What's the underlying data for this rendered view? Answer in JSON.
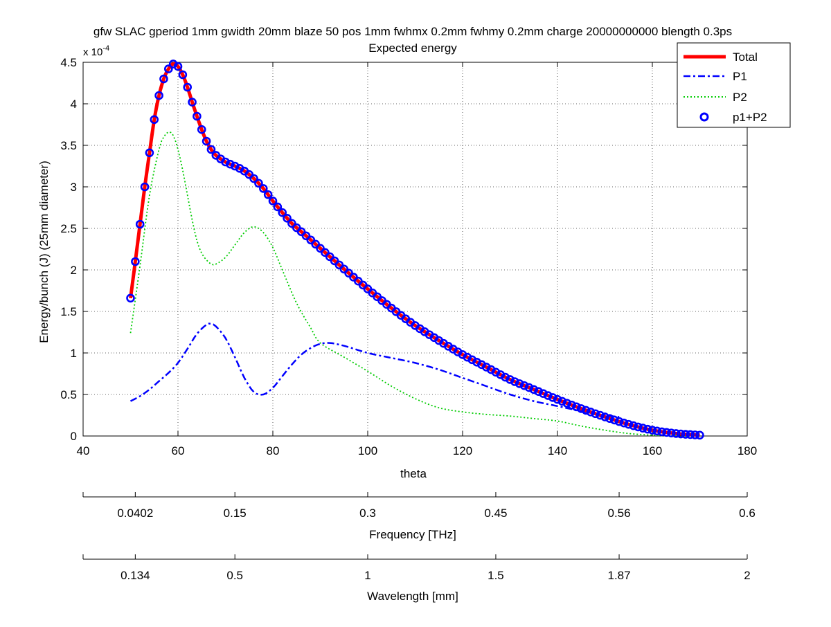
{
  "chart_data": {
    "type": "line",
    "title": "gfw SLAC gperiod 1mm gwidth 20mm blaze 50 pos 1mm fwhmx 0.2mm fwhmy 0.2mm charge 20000000000 blength 0.3ps",
    "subtitle": "Expected energy",
    "xlabel": "theta",
    "ylabel": "Energy/bunch (J)  (25mm diameter)",
    "y_multiplier": "x 10",
    "y_multiplier_exp": "-4",
    "xlim": [
      40,
      180
    ],
    "ylim": [
      0,
      4.5
    ],
    "x_ticks": [
      40,
      60,
      80,
      100,
      120,
      140,
      160,
      180
    ],
    "y_ticks": [
      0,
      0.5,
      1,
      1.5,
      2,
      2.5,
      3,
      3.5,
      4,
      4.5
    ],
    "grid": true,
    "legend_position": "top-right",
    "series": [
      {
        "name": "Total",
        "style": "solid",
        "color": "#ff0000",
        "x": [
          50,
          51,
          52,
          53,
          54,
          55,
          56,
          57,
          58,
          59,
          60,
          61,
          62,
          63,
          64,
          65,
          66,
          67,
          68,
          70,
          72,
          74,
          76,
          78,
          80,
          82,
          84,
          86,
          88,
          90,
          95,
          100,
          105,
          110,
          115,
          120,
          125,
          130,
          135,
          140,
          145,
          150,
          155,
          160,
          165,
          170
        ],
        "values": [
          1.66,
          2.1,
          2.55,
          3.0,
          3.41,
          3.81,
          4.1,
          4.3,
          4.42,
          4.48,
          4.45,
          4.35,
          4.2,
          4.02,
          3.85,
          3.69,
          3.55,
          3.45,
          3.38,
          3.3,
          3.25,
          3.19,
          3.1,
          2.98,
          2.83,
          2.69,
          2.56,
          2.46,
          2.36,
          2.26,
          2.01,
          1.77,
          1.54,
          1.33,
          1.15,
          0.98,
          0.83,
          0.68,
          0.56,
          0.44,
          0.33,
          0.23,
          0.14,
          0.07,
          0.03,
          0.01
        ]
      },
      {
        "name": "P1",
        "style": "dashdot",
        "color": "#0000ff",
        "x": [
          50,
          52,
          54,
          56,
          58,
          60,
          62,
          64,
          66,
          67,
          68,
          70,
          72,
          74,
          76,
          78,
          80,
          82,
          84,
          86,
          88,
          90,
          92,
          94,
          96,
          100,
          105,
          110,
          115,
          120,
          125,
          130,
          135,
          140,
          145,
          150,
          153
        ],
        "values": [
          0.42,
          0.48,
          0.56,
          0.66,
          0.76,
          0.88,
          1.05,
          1.23,
          1.34,
          1.35,
          1.32,
          1.18,
          0.95,
          0.7,
          0.53,
          0.5,
          0.58,
          0.72,
          0.86,
          0.98,
          1.06,
          1.11,
          1.12,
          1.1,
          1.07,
          1.0,
          0.94,
          0.88,
          0.8,
          0.7,
          0.6,
          0.5,
          0.42,
          0.36,
          0.3,
          0.25,
          0.23
        ]
      },
      {
        "name": "P2",
        "style": "dotted",
        "color": "#00cc00",
        "x": [
          50,
          52,
          54,
          56,
          57,
          58,
          59,
          60,
          61,
          62,
          63,
          64,
          65,
          66,
          67,
          68,
          70,
          72,
          74,
          76,
          78,
          80,
          82,
          85,
          88,
          90,
          95,
          100,
          105,
          110,
          115,
          120,
          125,
          130,
          135,
          140,
          145,
          150,
          155,
          160,
          165,
          170
        ],
        "values": [
          1.24,
          2.05,
          2.9,
          3.45,
          3.6,
          3.66,
          3.62,
          3.45,
          3.2,
          2.9,
          2.6,
          2.35,
          2.2,
          2.12,
          2.07,
          2.07,
          2.15,
          2.3,
          2.45,
          2.52,
          2.45,
          2.27,
          2.0,
          1.6,
          1.3,
          1.12,
          0.95,
          0.78,
          0.6,
          0.45,
          0.34,
          0.29,
          0.26,
          0.24,
          0.21,
          0.18,
          0.12,
          0.07,
          0.03,
          0.01,
          0.0,
          0.0
        ]
      },
      {
        "name": "p1+P2",
        "style": "circles",
        "color": "#0000ff"
      }
    ]
  },
  "extra_axes": [
    {
      "label": "Frequency [THz]",
      "ticks": [
        {
          "theta": 40,
          "label": ""
        },
        {
          "theta": 51,
          "label": "0.0402"
        },
        {
          "theta": 72,
          "label": "0.15"
        },
        {
          "theta": 100,
          "label": "0.3"
        },
        {
          "theta": 127,
          "label": "0.45"
        },
        {
          "theta": 153,
          "label": "0.56"
        },
        {
          "theta": 180,
          "label": "0.6"
        }
      ]
    },
    {
      "label": "Wavelength [mm]",
      "ticks": [
        {
          "theta": 40,
          "label": ""
        },
        {
          "theta": 51,
          "label": "0.134"
        },
        {
          "theta": 72,
          "label": "0.5"
        },
        {
          "theta": 100,
          "label": "1"
        },
        {
          "theta": 127,
          "label": "1.5"
        },
        {
          "theta": 153,
          "label": "1.87"
        },
        {
          "theta": 180,
          "label": "2"
        }
      ]
    }
  ]
}
